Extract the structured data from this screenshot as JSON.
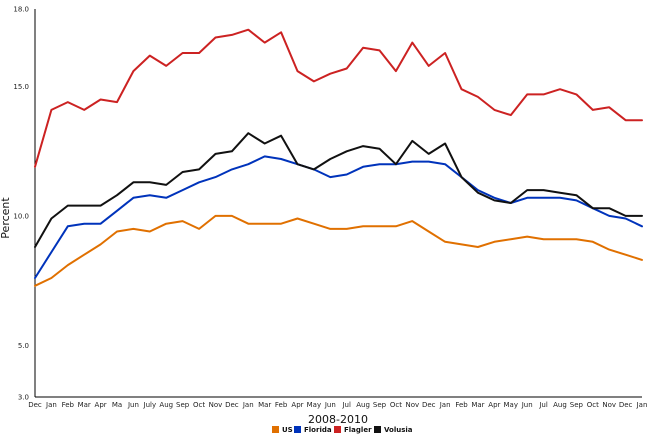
{
  "chart_data": {
    "type": "line",
    "title": "",
    "xlabel": "2008-2010",
    "ylabel": "Percent",
    "ylim": [
      3.0,
      18.0
    ],
    "y_ticks": [
      "18.0",
      "15.0",
      "10.0",
      "5.0",
      "3.0"
    ],
    "y_tick_values": [
      18.0,
      15.0,
      10.0,
      5.0,
      3.0
    ],
    "grid": false,
    "legend_position": "bottom",
    "categories": [
      "Dec",
      "Jan",
      "Feb",
      "Mar",
      "Apr",
      "Ma",
      "Jun",
      "July",
      "Aug",
      "Sep",
      "Oct",
      "Nov",
      "Dec",
      "Jan",
      "Mar",
      "Feb",
      "Apr",
      "May",
      "Jun",
      "Jul",
      "Aug",
      "Sep",
      "Oct",
      "Nov",
      "Dec",
      "Jan",
      "Feb",
      "Mar",
      "Apr",
      "May",
      "Jun",
      "Jul",
      "Aug",
      "Sep",
      "Oct",
      "Nov",
      "Dec",
      "Jan"
    ],
    "series": [
      {
        "name": "US",
        "color": "#e07000",
        "values": [
          7.3,
          7.6,
          8.1,
          8.5,
          8.9,
          9.4,
          9.5,
          9.4,
          9.7,
          9.8,
          9.5,
          10.0,
          10.0,
          9.7,
          9.7,
          9.7,
          9.9,
          9.7,
          9.5,
          9.5,
          9.6,
          9.6,
          9.6,
          9.8,
          9.4,
          9.0,
          8.9,
          8.8,
          9.0,
          9.1,
          9.2,
          9.1,
          9.1,
          9.1,
          9.0,
          8.7,
          8.5,
          8.3
        ]
      },
      {
        "name": "Florida",
        "color": "#0033bb",
        "values": [
          7.6,
          8.6,
          9.6,
          9.7,
          9.7,
          10.2,
          10.7,
          10.8,
          10.7,
          11.0,
          11.3,
          11.5,
          11.8,
          12.0,
          12.3,
          12.2,
          12.0,
          11.8,
          11.5,
          11.6,
          11.9,
          12.0,
          12.0,
          12.1,
          12.1,
          12.0,
          11.5,
          11.0,
          10.7,
          10.5,
          10.7,
          10.7,
          10.7,
          10.6,
          10.3,
          10.0,
          9.9,
          9.6
        ]
      },
      {
        "name": "Flagler",
        "color": "#cc2222",
        "values": [
          11.9,
          14.1,
          14.4,
          14.1,
          14.5,
          14.4,
          15.6,
          16.2,
          15.8,
          16.3,
          16.3,
          16.9,
          17.0,
          17.2,
          16.7,
          17.1,
          15.6,
          15.2,
          15.5,
          15.7,
          16.5,
          16.4,
          15.6,
          16.7,
          15.8,
          16.3,
          14.9,
          14.6,
          14.1,
          13.9,
          14.7,
          14.7,
          14.9,
          14.7,
          14.1,
          14.2,
          13.7,
          13.7
        ]
      },
      {
        "name": "Volusia",
        "color": "#111111",
        "values": [
          8.8,
          9.9,
          10.4,
          10.4,
          10.4,
          10.8,
          11.3,
          11.3,
          11.2,
          11.7,
          11.8,
          12.4,
          12.5,
          13.2,
          12.8,
          13.1,
          12.0,
          11.8,
          12.2,
          12.5,
          12.7,
          12.6,
          12.0,
          12.9,
          12.4,
          12.8,
          11.5,
          10.9,
          10.6,
          10.5,
          11.0,
          11.0,
          10.9,
          10.8,
          10.3,
          10.3,
          10.0,
          10.0
        ]
      }
    ]
  }
}
